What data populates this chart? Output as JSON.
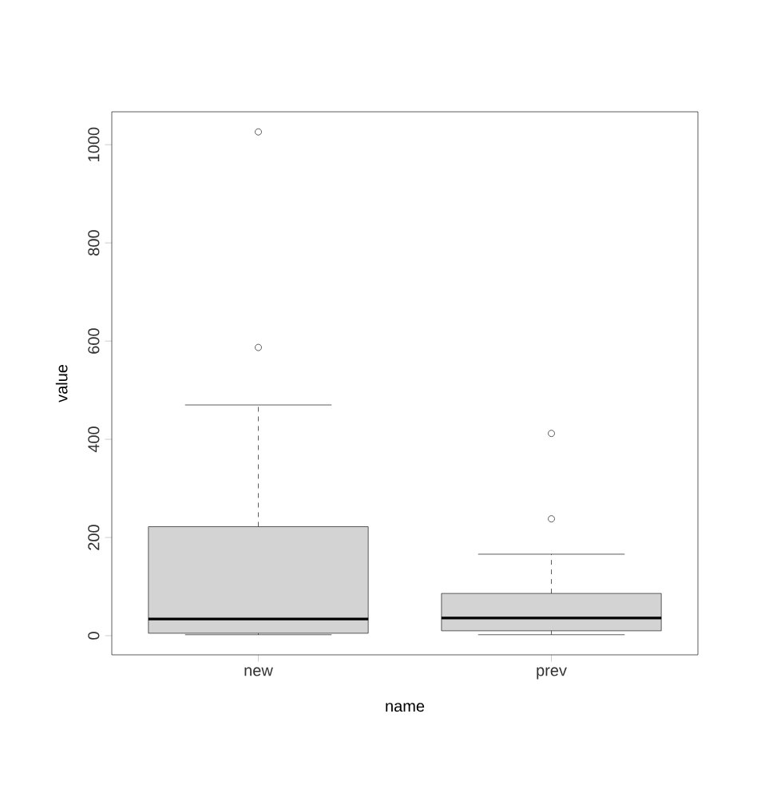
{
  "chart_data": {
    "type": "box",
    "xlabel": "name",
    "ylabel": "value",
    "categories": [
      "new",
      "prev"
    ],
    "boxes": [
      {
        "low": 2,
        "q1": 5,
        "median": 34,
        "q3": 222,
        "high": 470,
        "outliers": [
          587,
          1026
        ]
      },
      {
        "low": 2,
        "q1": 10,
        "median": 36,
        "q3": 86,
        "high": 166,
        "outliers": [
          238,
          412
        ]
      }
    ],
    "color": "#d3d3d3",
    "ylim": [
      -39,
      1067
    ],
    "yticks": [
      0,
      200,
      400,
      600,
      800,
      1000
    ],
    "grid": false
  }
}
